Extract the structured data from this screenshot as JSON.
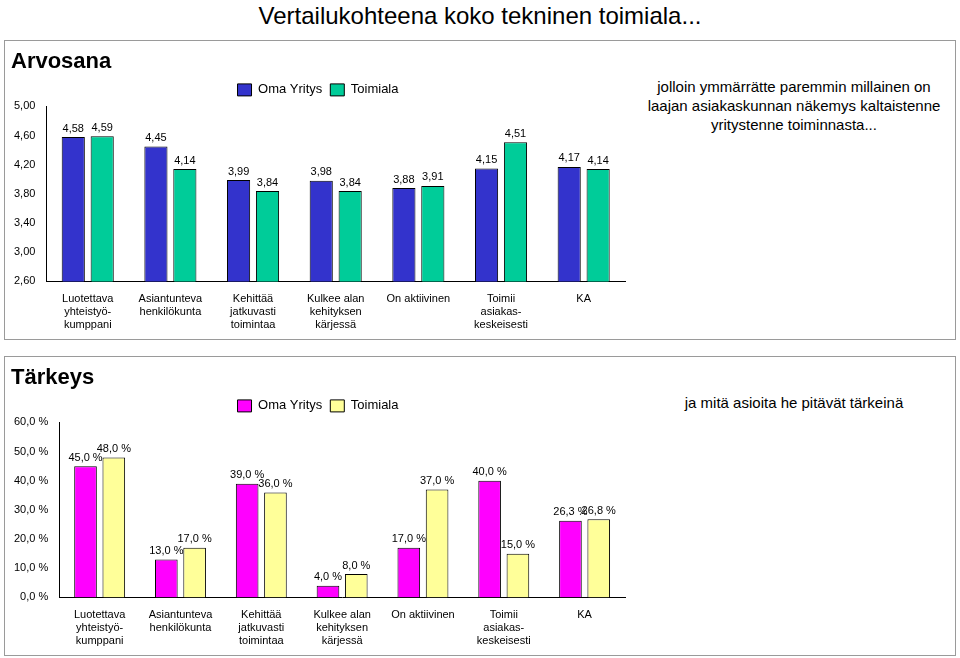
{
  "header": {
    "title": "Vertailukohteena koko tekninen toimiala..."
  },
  "chart_data": [
    {
      "type": "bar",
      "title": "Arvosana",
      "annotation": "jolloin ymmärrätte paremmin millainen on laajan asiakaskunnan näkemys kaltaistenne yritystenne toiminnasta...",
      "categories": [
        [
          "Luotettava",
          "yhteistyö-",
          "kumppani"
        ],
        [
          "Asiantunteva",
          "henkilökunta"
        ],
        [
          "Kehittää",
          "jatkuvasti",
          "toimintaa"
        ],
        [
          "Kulkee alan",
          "kehityksen",
          "kärjessä"
        ],
        [
          "On aktiivinen"
        ],
        [
          "Toimii",
          "asiakas-",
          "keskeisesti"
        ],
        [
          "KA"
        ]
      ],
      "series": [
        {
          "name": "Oma Yritys",
          "color": "#3333cc",
          "values": [
            4.58,
            4.45,
            3.99,
            3.98,
            3.88,
            4.15,
            4.17
          ],
          "value_labels": [
            "4,58",
            "4,45",
            "3,99",
            "3,98",
            "3,88",
            "4,15",
            "4,17"
          ]
        },
        {
          "name": "Toimiala",
          "color": "#00cc99",
          "values": [
            4.59,
            4.14,
            3.84,
            3.84,
            3.91,
            4.51,
            4.14
          ],
          "value_labels": [
            "4,59",
            "4,14",
            "3,84",
            "3,84",
            "3,91",
            "4,51",
            "4,14"
          ]
        }
      ],
      "ylim": [
        2.6,
        5.0
      ],
      "yticks": [
        {
          "value": 2.6,
          "label": "2,60"
        },
        {
          "value": 3.0,
          "label": "3,00"
        },
        {
          "value": 3.4,
          "label": "3,40"
        },
        {
          "value": 3.8,
          "label": "3,80"
        },
        {
          "value": 4.2,
          "label": "4,20"
        },
        {
          "value": 4.6,
          "label": "4,60"
        },
        {
          "value": 5.0,
          "label": "5,00"
        }
      ],
      "grid": false,
      "legend": "top",
      "data_labels": true
    },
    {
      "type": "bar",
      "title": "Tärkeys",
      "annotation": "ja mitä asioita he pitävät tärkeinä",
      "categories": [
        [
          "Luotettava",
          "yhteistyö-",
          "kumppani"
        ],
        [
          "Asiantunteva",
          "henkilökunta"
        ],
        [
          "Kehittää",
          "jatkuvasti",
          "toimintaa"
        ],
        [
          "Kulkee alan",
          "kehityksen",
          "kärjessä"
        ],
        [
          "On aktiivinen"
        ],
        [
          "Toimii",
          "asiakas-",
          "keskeisesti"
        ],
        [
          "KA"
        ]
      ],
      "series": [
        {
          "name": "Oma Yritys",
          "color": "#ff00ff",
          "values": [
            45.0,
            13.0,
            39.0,
            4.0,
            17.0,
            40.0,
            26.3
          ],
          "value_labels": [
            "45,0 %",
            "13,0 %",
            "39,0 %",
            "4,0 %",
            "17,0 %",
            "40,0 %",
            "26,3 %"
          ]
        },
        {
          "name": "Toimiala",
          "color": "#ffff99",
          "values": [
            48.0,
            17.0,
            36.0,
            8.0,
            37.0,
            15.0,
            26.8
          ],
          "value_labels": [
            "48,0 %",
            "17,0 %",
            "36,0 %",
            "8,0 %",
            "37,0 %",
            "15,0 %",
            "26,8 %"
          ]
        }
      ],
      "ylim": [
        0,
        60
      ],
      "yticks": [
        {
          "value": 0,
          "label": "0,0 %"
        },
        {
          "value": 10,
          "label": "10,0 %"
        },
        {
          "value": 20,
          "label": "20,0 %"
        },
        {
          "value": 30,
          "label": "30,0 %"
        },
        {
          "value": 40,
          "label": "40,0 %"
        },
        {
          "value": 50,
          "label": "50,0 %"
        },
        {
          "value": 60,
          "label": "60,0 %"
        }
      ],
      "grid": false,
      "legend": "top",
      "data_labels": true
    }
  ]
}
